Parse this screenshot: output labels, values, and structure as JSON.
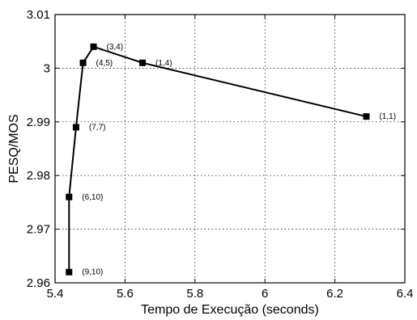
{
  "chart_data": {
    "type": "line",
    "title": "",
    "xlabel": "Tempo de Execução (seconds)",
    "ylabel": "PESQ/MOS",
    "xlim": [
      5.4,
      6.4
    ],
    "ylim": [
      2.96,
      3.01
    ],
    "x_ticks": [
      "5.4",
      "5.6",
      "5.8",
      "6",
      "6.2",
      "6.4"
    ],
    "y_ticks": [
      "2.96",
      "2.97",
      "2.98",
      "2.99",
      "3",
      "3.01"
    ],
    "grid": true,
    "marker": "square",
    "line_color": "#000000",
    "series": [
      {
        "points": [
          {
            "x": 5.44,
            "y": 2.962,
            "label": "(9,10)"
          },
          {
            "x": 5.44,
            "y": 2.976,
            "label": "(6,10)"
          },
          {
            "x": 5.46,
            "y": 2.989,
            "label": "(7,7)"
          },
          {
            "x": 5.48,
            "y": 3.001,
            "label": "(4,5)"
          },
          {
            "x": 5.51,
            "y": 3.004,
            "label": "(3,4)"
          },
          {
            "x": 5.65,
            "y": 3.001,
            "label": "(1,4)"
          },
          {
            "x": 6.29,
            "y": 2.991,
            "label": "(1,1)"
          }
        ]
      }
    ]
  }
}
